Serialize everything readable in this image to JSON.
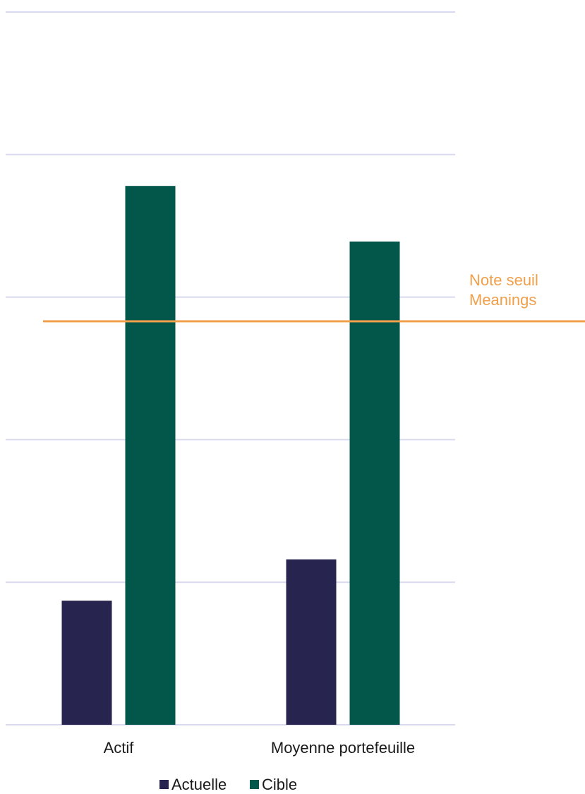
{
  "chart_data": {
    "type": "bar",
    "categories": [
      "Actif",
      "Moyenne portefeuille"
    ],
    "series": [
      {
        "name": "Actuelle",
        "values": [
          0.87,
          1.16
        ],
        "color": "#27244f"
      },
      {
        "name": "Cible",
        "values": [
          3.78,
          3.39
        ],
        "color": "#02574a"
      }
    ],
    "reference_line": {
      "value": 2.83,
      "label_lines": [
        "Note seuil",
        "Meanings"
      ],
      "color": "#f0a04b"
    },
    "ylim": [
      0,
      5
    ],
    "y_gridlines": [
      0,
      1,
      2,
      3,
      4,
      5
    ],
    "y_tick_labels_visible": false,
    "grid": true,
    "gridline_color": "#d9d9ef",
    "legend": {
      "position": "bottom",
      "entries": [
        "Actuelle",
        "Cible"
      ]
    },
    "title": "",
    "xlabel": "",
    "ylabel": ""
  }
}
